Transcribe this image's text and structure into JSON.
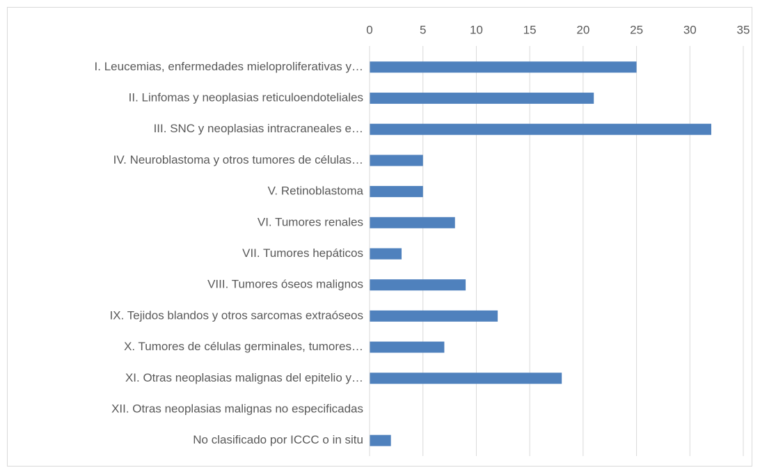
{
  "chart_data": {
    "type": "bar",
    "orientation": "horizontal",
    "categories": [
      "I. Leucemias, enfermedades mieloproliferativas y…",
      "II. Linfomas y neoplasias reticuloendoteliales",
      "III. SNC y neoplasias intracraneales e…",
      "IV. Neuroblastoma y otros tumores de células…",
      "V. Retinoblastoma",
      "VI. Tumores renales",
      "VII. Tumores hepáticos",
      "VIII. Tumores óseos malignos",
      "IX. Tejidos blandos y otros sarcomas extraóseos",
      "X. Tumores de células germinales, tumores…",
      "XI. Otras neoplasias malignas del epitelio y…",
      "XII. Otras neoplasias malignas no especificadas",
      "No clasificado por ICCC o in situ"
    ],
    "values": [
      25,
      21,
      32,
      5,
      5,
      8,
      3,
      9,
      12,
      7,
      18,
      0,
      2
    ],
    "color": "#4f81bd",
    "xlim": [
      0,
      35
    ],
    "xticks": [
      0,
      5,
      10,
      15,
      20,
      25,
      30,
      35
    ],
    "grid": true
  }
}
